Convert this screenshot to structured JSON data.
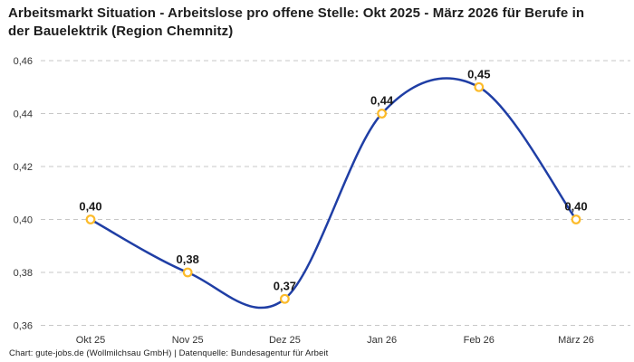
{
  "chart_data": {
    "type": "line",
    "title": "Arbeitsmarkt Situation - Arbeitslose pro offene Stelle: Okt 2025 - März 2026 für Berufe in der Bauelektrik (Region Chemnitz)",
    "categories": [
      "Okt 25",
      "Nov 25",
      "Dez 25",
      "Jan 26",
      "Feb 26",
      "März 26"
    ],
    "values": [
      0.4,
      0.38,
      0.37,
      0.44,
      0.45,
      0.4
    ],
    "point_labels": [
      "0,40",
      "0,38",
      "0,37",
      "0,44",
      "0,45",
      "0,40"
    ],
    "xlabel": "",
    "ylabel": "",
    "ylim": [
      0.36,
      0.46
    ],
    "yticks": [
      0.46,
      0.44,
      0.42,
      0.4,
      0.38,
      0.36
    ],
    "ytick_labels": [
      "0,46",
      "0,44",
      "0,42",
      "0,40",
      "0,38",
      "0,36"
    ],
    "grid": true,
    "grid_style": "dashed",
    "legend": false,
    "colors": {
      "line": "#1f3ea5",
      "marker_ring": "#fcbb2a",
      "marker_fill": "#ffffff",
      "point_label": "#1a1a1a",
      "axis_text": "#333333",
      "gridline": "#c7c7c7"
    }
  },
  "footer": {
    "credit": "Chart: gute-jobs.de (Wollmilchsau GmbH) | Datenquelle: Bundesagentur für Arbeit"
  }
}
